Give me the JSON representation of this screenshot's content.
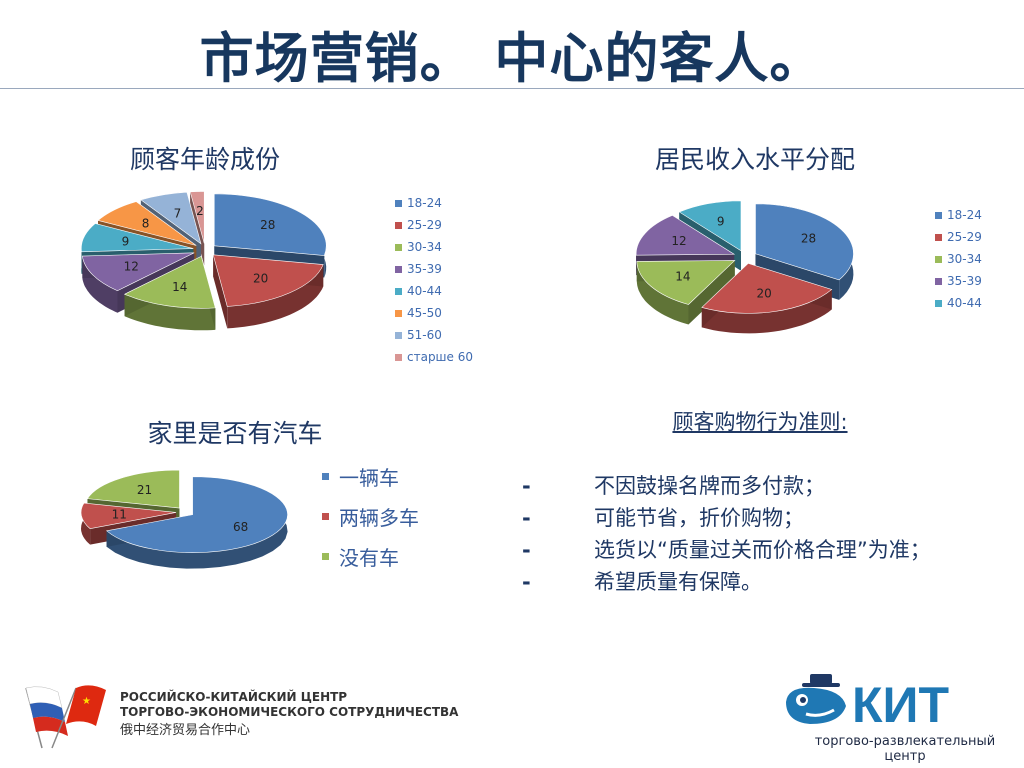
{
  "page": {
    "title": "市场营销。 中心的客人。"
  },
  "rules": {
    "title": "顾客购物行为准则:",
    "items": [
      {
        "bullet": "-",
        "text": "不因鼓操名牌而多付款；"
      },
      {
        "bullet": "-",
        "text": "可能节省，折价购物；"
      },
      {
        "bullet": "-",
        "text": "选货以“质量过关而价格合理”为准；"
      },
      {
        "bullet": "-",
        "text": "希望质量有保障。"
      }
    ]
  },
  "footer": {
    "line1": "РОССИЙСКО-КИТАЙСКИЙ ЦЕНТР",
    "line2": "ТОРГОВО-ЭКОНОМИЧЕСКОГО СОТРУДНИЧЕСТВА",
    "line3": "俄中经济贸易合作中心",
    "logo_word": "КИТ",
    "logo_tagline": "торгово-развлекательный центр"
  },
  "colors": {
    "title": "#17375e",
    "blue": "#4f81bd",
    "red": "#c0504d",
    "green": "#9bbb59",
    "purple": "#8064a2",
    "teal": "#4bacc6",
    "orange": "#f79646",
    "lightblue": "#95b3d7",
    "pink": "#d99694"
  },
  "icons": [
    "russia-flag-icon",
    "china-flag-icon",
    "whale-icon"
  ],
  "chart_data": [
    {
      "type": "pie",
      "title": "顾客年龄成份",
      "categories": [
        "18-24",
        "25-29",
        "30-34",
        "35-39",
        "40-44",
        "45-50",
        "51-60",
        "старше 60"
      ],
      "values": [
        28,
        20,
        14,
        12,
        9,
        8,
        7,
        2
      ],
      "colors": [
        "#4f81bd",
        "#c0504d",
        "#9bbb59",
        "#8064a2",
        "#4bacc6",
        "#f79646",
        "#95b3d7",
        "#d99694"
      ],
      "exploded": true,
      "legend": "right",
      "style": "3d"
    },
    {
      "type": "pie",
      "title": "居民收入水平分配",
      "categories": [
        "18-24",
        "25-29",
        "30-34",
        "35-39",
        "40-44"
      ],
      "values": [
        28,
        20,
        14,
        12,
        9
      ],
      "colors": [
        "#4f81bd",
        "#c0504d",
        "#9bbb59",
        "#8064a2",
        "#4bacc6"
      ],
      "exploded": true,
      "legend": "right",
      "style": "3d"
    },
    {
      "type": "pie",
      "title": "家里是否有汽车",
      "categories": [
        "一辆车",
        "两辆多车",
        "没有车"
      ],
      "values": [
        68,
        11,
        21
      ],
      "colors": [
        "#4f81bd",
        "#c0504d",
        "#9bbb59"
      ],
      "exploded": true,
      "legend": "right",
      "style": "3d"
    }
  ]
}
